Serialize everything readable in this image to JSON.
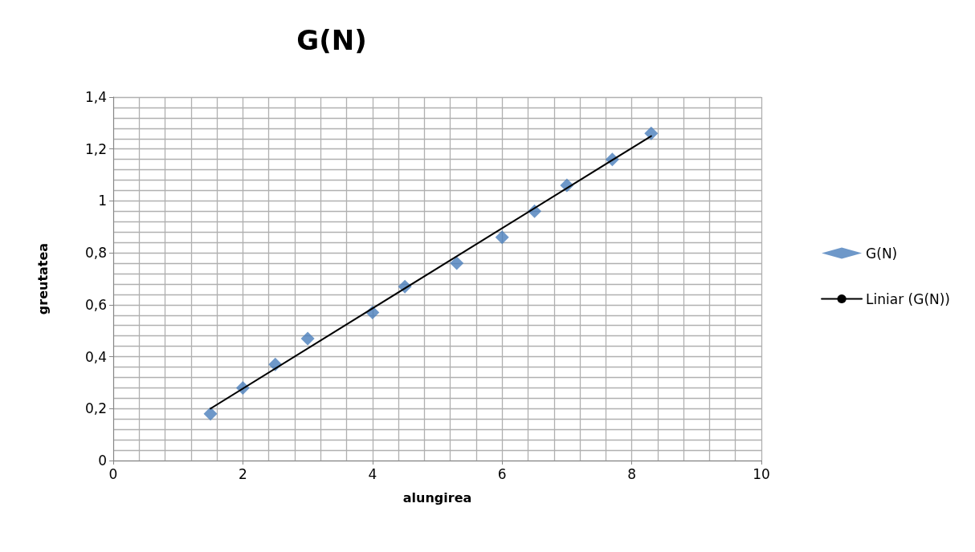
{
  "chart_data": {
    "type": "scatter",
    "title": "G(N)",
    "xlabel": "alungirea",
    "ylabel": "greutatea",
    "xlim": [
      0,
      10
    ],
    "xticks": [
      0,
      2,
      4,
      6,
      8,
      10
    ],
    "ylim": [
      0,
      1.4
    ],
    "yticks": [
      0,
      {
        "value": 0.2,
        "label": "0,2"
      },
      {
        "value": 0.4,
        "label": "0,4"
      },
      {
        "value": 0.6,
        "label": "0,6"
      },
      {
        "value": 0.8,
        "label": "0,8"
      },
      1,
      {
        "value": 1.2,
        "label": "1,2"
      },
      {
        "value": 1.4,
        "label": "1,4"
      }
    ],
    "grid": true,
    "legend": "right",
    "marker": "diamond",
    "series": [
      {
        "name": "G(N)",
        "color": "#4a7ebb",
        "x": [
          1.5,
          2,
          2.5,
          3,
          4,
          4.5,
          5.3,
          6,
          6.5,
          7,
          7.7,
          8.3
        ],
        "values": [
          0.18,
          0.28,
          0.37,
          0.47,
          0.57,
          0.67,
          0.76,
          0.86,
          0.96,
          1.06,
          1.16,
          1.26
        ]
      },
      {
        "name": "Liniar (G(N))",
        "type": "line",
        "color": "#000000",
        "marker": "none",
        "line_style": "solid",
        "x": [
          1.5,
          8.3
        ],
        "values": [
          0.2,
          1.25
        ]
      }
    ]
  }
}
